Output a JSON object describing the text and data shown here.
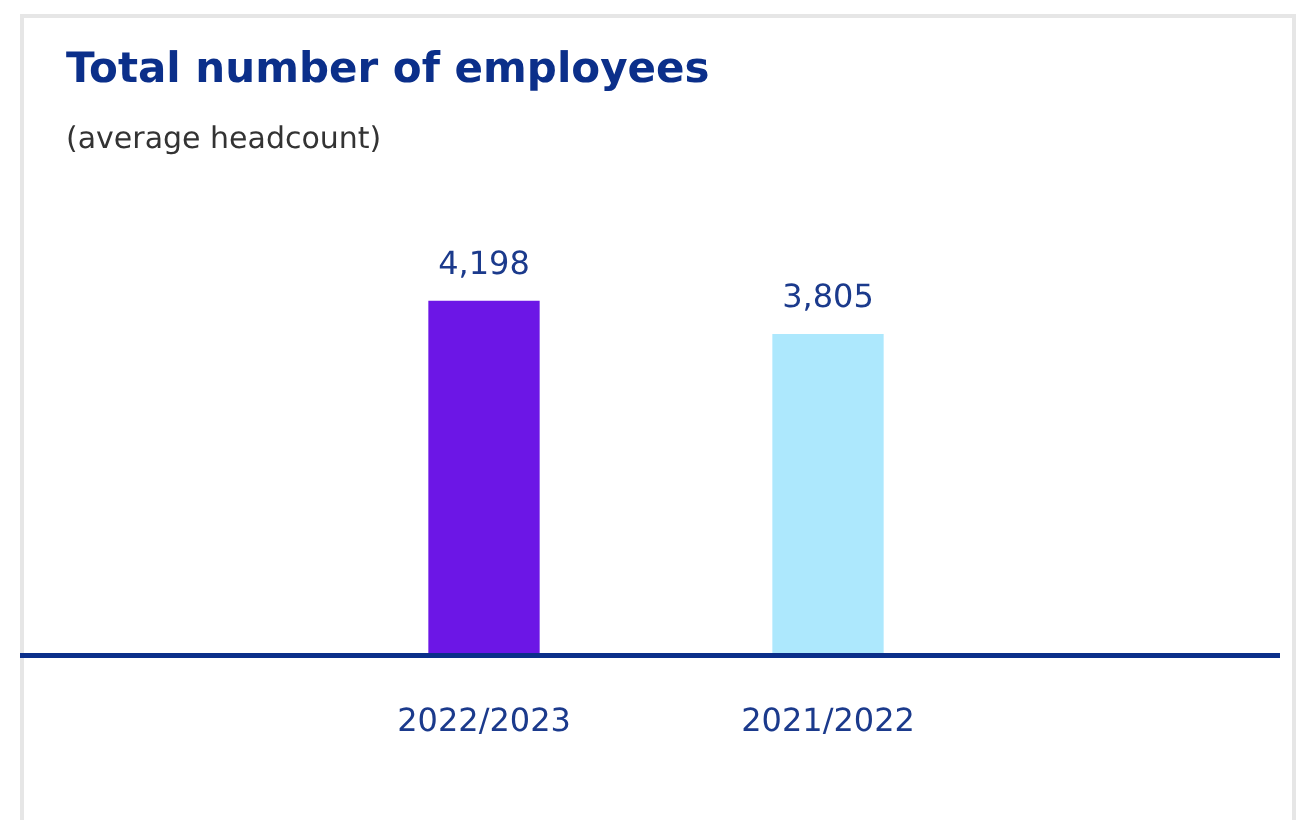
{
  "chart_data": {
    "type": "bar",
    "title": "Total number of employees",
    "subtitle": "(average headcount)",
    "categories": [
      "2022/2023",
      "2021/2022"
    ],
    "values": [
      4198,
      3805
    ],
    "colors": [
      "#6c16e6",
      "#ade8fd"
    ],
    "value_labels": [
      "4,198",
      "3,805"
    ],
    "grid": false,
    "legend": false
  }
}
